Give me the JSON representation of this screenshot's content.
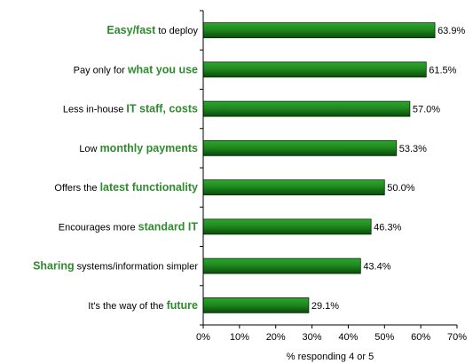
{
  "chart_data": {
    "type": "bar",
    "orientation": "horizontal",
    "categories": [
      [
        {
          "text": "Easy/fast",
          "highlight": true
        },
        {
          "text": " to deploy",
          "highlight": false
        }
      ],
      [
        {
          "text": "Pay only for ",
          "highlight": false
        },
        {
          "text": "what you use",
          "highlight": true
        }
      ],
      [
        {
          "text": "Less in-house ",
          "highlight": false
        },
        {
          "text": "IT staff, costs",
          "highlight": true
        }
      ],
      [
        {
          "text": "Low ",
          "highlight": false
        },
        {
          "text": "monthly payments",
          "highlight": true
        }
      ],
      [
        {
          "text": "Offers the ",
          "highlight": false
        },
        {
          "text": "latest functionality",
          "highlight": true
        }
      ],
      [
        {
          "text": "Encourages more ",
          "highlight": false
        },
        {
          "text": "standard IT",
          "highlight": true
        }
      ],
      [
        {
          "text": "Sharing",
          "highlight": true
        },
        {
          "text": " systems/information simpler",
          "highlight": false
        }
      ],
      [
        {
          "text": "It's the way of the ",
          "highlight": false
        },
        {
          "text": "future",
          "highlight": true
        }
      ]
    ],
    "values": [
      63.9,
      61.5,
      57.0,
      53.3,
      50.0,
      46.3,
      43.4,
      29.1
    ],
    "value_labels": [
      "63.9%",
      "61.5%",
      "57.0%",
      "53.3%",
      "50.0%",
      "46.3%",
      "43.4%",
      "29.1%"
    ],
    "xlim": [
      0,
      70
    ],
    "ticks": [
      0,
      10,
      20,
      30,
      40,
      50,
      60,
      70
    ],
    "tick_labels": [
      "0%",
      "10%",
      "20%",
      "30%",
      "40%",
      "50%",
      "60%",
      "70%"
    ],
    "xlabel": "% responding 4 or 5",
    "ylabel": "",
    "title": "",
    "grid": false,
    "colors": {
      "bar_dark": "#0b4a0b",
      "bar_mid": "#1f8a1f",
      "bar_light": "#2fa52f",
      "highlight_text": "#2e8b2e",
      "axis": "#000000"
    }
  }
}
